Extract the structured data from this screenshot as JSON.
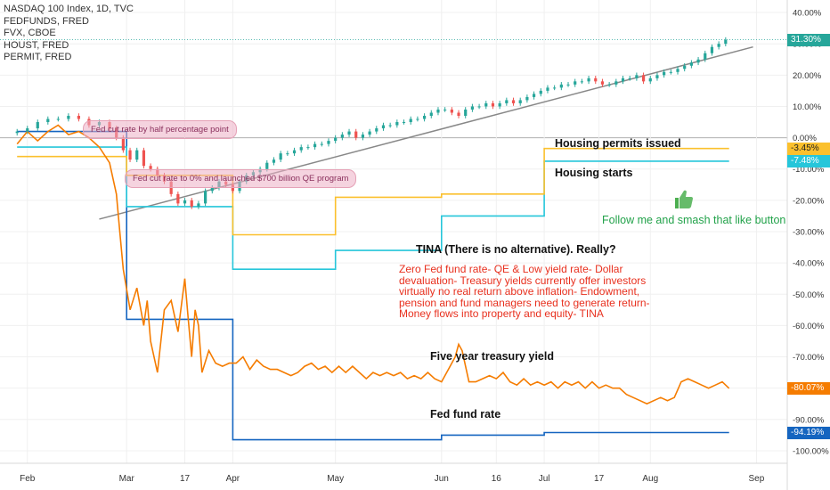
{
  "legend": {
    "main": "NASDAQ 100 Index, 1D, TVC",
    "s1": "FEDFUNDS, FRED",
    "s2": "FVX, CBOE",
    "s3": "HOUST, FRED",
    "s4": "PERMIT, FRED"
  },
  "annotations": {
    "bubble1": "Fed cut rate by half percentage point",
    "bubble2": "Fed cut rate to 0% and launched $700 billion QE program",
    "permits": "Housing permits issued",
    "starts": "Housing starts",
    "like": "Follow me and smash that like button",
    "tina_title": "TINA (There is no alternative). Really?",
    "tina_body": "Zero Fed fund rate-  QE & Low yield rate-  Dollar devaluation-  Treasury yields currently offer investors virtually no real return above inflation- Endowment, pension and fund managers need to generate return-  Money flows into property and equity-  TINA",
    "treasury": "Five year treasury yield",
    "fedfund": "Fed fund rate"
  },
  "labels": {
    "nasdaq": "31.30%",
    "permit": "-3.45%",
    "houst": "-7.48%",
    "fvx": "-80.07%",
    "fedfunds": "-94.19%"
  },
  "colors": {
    "nasdaq_up": "#26a69a",
    "nasdaq_down": "#ef5350",
    "fedfunds": "#1565c0",
    "fvx": "#f57c00",
    "houst": "#26c6da",
    "permit": "#fbc02d",
    "trendline": "#888888"
  },
  "chart_data": {
    "type": "line",
    "yaxis_unit": "%",
    "ylim": [
      -104,
      44
    ],
    "y_ticks": [
      "40.00%",
      "30.00%",
      "20.00%",
      "10.00%",
      "0.00%",
      "-10.00%",
      "-20.00%",
      "-30.00%",
      "-40.00%",
      "-50.00%",
      "-60.00%",
      "-70.00%",
      "-80.00%",
      "-90.00%",
      "-100.00%"
    ],
    "y_tick_values": [
      40,
      30,
      20,
      10,
      0,
      -10,
      -20,
      -30,
      -40,
      -50,
      -60,
      -70,
      -80,
      -90,
      -100
    ],
    "x_ticks": [
      "Feb",
      "Mar",
      "17",
      "Apr",
      "May",
      "Jun",
      "16",
      "Jul",
      "17",
      "Aug",
      "Sep"
    ],
    "x_tick_days": [
      0,
      29,
      46,
      60,
      90,
      121,
      137,
      151,
      167,
      182,
      213
    ],
    "grid": true,
    "series": [
      {
        "key": "fedfunds",
        "name": "FEDFUNDS, FRED",
        "type": "step",
        "points": [
          [
            -3,
            2
          ],
          [
            29,
            2
          ],
          [
            29,
            -58
          ],
          [
            60,
            -58
          ],
          [
            60,
            -96.5
          ],
          [
            121,
            -96.5
          ],
          [
            121,
            -95
          ],
          [
            151,
            -95
          ],
          [
            151,
            -94.19
          ],
          [
            205,
            -94.19
          ]
        ]
      },
      {
        "key": "houst",
        "name": "HOUST, FRED",
        "type": "step",
        "points": [
          [
            -3,
            -3
          ],
          [
            29,
            -3
          ],
          [
            29,
            -22
          ],
          [
            60,
            -22
          ],
          [
            60,
            -42
          ],
          [
            90,
            -42
          ],
          [
            90,
            -36
          ],
          [
            121,
            -36
          ],
          [
            121,
            -25
          ],
          [
            151,
            -25
          ],
          [
            151,
            -7.48
          ],
          [
            205,
            -7.48
          ]
        ]
      },
      {
        "key": "permit",
        "name": "PERMIT, FRED",
        "type": "step",
        "points": [
          [
            -3,
            -6
          ],
          [
            29,
            -6
          ],
          [
            29,
            -12
          ],
          [
            60,
            -12
          ],
          [
            60,
            -31
          ],
          [
            90,
            -31
          ],
          [
            90,
            -19
          ],
          [
            121,
            -19
          ],
          [
            121,
            -18
          ],
          [
            151,
            -18
          ],
          [
            151,
            -3.45
          ],
          [
            205,
            -3.45
          ]
        ]
      },
      {
        "key": "fvx",
        "name": "FVX, CBOE",
        "type": "line",
        "points": [
          [
            -3,
            -2
          ],
          [
            0,
            2
          ],
          [
            3,
            -1
          ],
          [
            6,
            2
          ],
          [
            9,
            4
          ],
          [
            12,
            1
          ],
          [
            15,
            2
          ],
          [
            18,
            0
          ],
          [
            21,
            -3
          ],
          [
            24,
            -8
          ],
          [
            26,
            -18
          ],
          [
            27,
            -30
          ],
          [
            28,
            -42
          ],
          [
            30,
            -55
          ],
          [
            32,
            -48
          ],
          [
            34,
            -60
          ],
          [
            35,
            -52
          ],
          [
            36,
            -65
          ],
          [
            38,
            -75
          ],
          [
            40,
            -55
          ],
          [
            42,
            -52
          ],
          [
            44,
            -62
          ],
          [
            46,
            -45
          ],
          [
            47,
            -58
          ],
          [
            48,
            -70
          ],
          [
            49,
            -55
          ],
          [
            50,
            -60
          ],
          [
            51,
            -75
          ],
          [
            53,
            -68
          ],
          [
            55,
            -72
          ],
          [
            57,
            -73
          ],
          [
            59,
            -72
          ],
          [
            61,
            -72
          ],
          [
            63,
            -70
          ],
          [
            65,
            -74
          ],
          [
            67,
            -71
          ],
          [
            69,
            -73
          ],
          [
            71,
            -74
          ],
          [
            73,
            -74
          ],
          [
            75,
            -75
          ],
          [
            77,
            -76
          ],
          [
            79,
            -75
          ],
          [
            81,
            -73
          ],
          [
            83,
            -72
          ],
          [
            85,
            -74
          ],
          [
            87,
            -73
          ],
          [
            89,
            -75
          ],
          [
            91,
            -73
          ],
          [
            93,
            -75
          ],
          [
            95,
            -73
          ],
          [
            97,
            -75
          ],
          [
            99,
            -77
          ],
          [
            101,
            -75
          ],
          [
            103,
            -76
          ],
          [
            105,
            -75
          ],
          [
            107,
            -76
          ],
          [
            109,
            -75
          ],
          [
            111,
            -77
          ],
          [
            113,
            -76
          ],
          [
            115,
            -77
          ],
          [
            117,
            -75
          ],
          [
            119,
            -77
          ],
          [
            121,
            -78
          ],
          [
            123,
            -74
          ],
          [
            125,
            -70
          ],
          [
            126,
            -66
          ],
          [
            127,
            -68
          ],
          [
            129,
            -78
          ],
          [
            131,
            -78
          ],
          [
            133,
            -77
          ],
          [
            135,
            -76
          ],
          [
            137,
            -77
          ],
          [
            139,
            -75
          ],
          [
            141,
            -78
          ],
          [
            143,
            -79
          ],
          [
            145,
            -77
          ],
          [
            147,
            -79
          ],
          [
            149,
            -78
          ],
          [
            151,
            -79
          ],
          [
            153,
            -78
          ],
          [
            155,
            -80
          ],
          [
            157,
            -78
          ],
          [
            159,
            -79
          ],
          [
            161,
            -78
          ],
          [
            163,
            -80
          ],
          [
            165,
            -78
          ],
          [
            167,
            -80
          ],
          [
            169,
            -79
          ],
          [
            171,
            -80
          ],
          [
            173,
            -80
          ],
          [
            175,
            -82
          ],
          [
            177,
            -83
          ],
          [
            179,
            -84
          ],
          [
            181,
            -85
          ],
          [
            183,
            -84
          ],
          [
            185,
            -83
          ],
          [
            187,
            -84
          ],
          [
            189,
            -83
          ],
          [
            191,
            -78
          ],
          [
            193,
            -77
          ],
          [
            195,
            -78
          ],
          [
            197,
            -79
          ],
          [
            199,
            -80
          ],
          [
            201,
            -79
          ],
          [
            203,
            -78
          ],
          [
            205,
            -80.07
          ]
        ]
      },
      {
        "key": "nasdaq",
        "name": "NASDAQ 100 Index, 1D, TVC",
        "type": "candle",
        "close": [
          [
            -3,
            2
          ],
          [
            0,
            3
          ],
          [
            3,
            5
          ],
          [
            6,
            6
          ],
          [
            9,
            6
          ],
          [
            12,
            7
          ],
          [
            15,
            6
          ],
          [
            18,
            4
          ],
          [
            21,
            5
          ],
          [
            24,
            3
          ],
          [
            26,
            0
          ],
          [
            28,
            -4
          ],
          [
            30,
            -7
          ],
          [
            32,
            -4
          ],
          [
            34,
            -9
          ],
          [
            36,
            -10
          ],
          [
            38,
            -12
          ],
          [
            40,
            -14
          ],
          [
            42,
            -18
          ],
          [
            44,
            -21
          ],
          [
            46,
            -20
          ],
          [
            48,
            -22
          ],
          [
            50,
            -21
          ],
          [
            52,
            -17
          ],
          [
            54,
            -16
          ],
          [
            56,
            -14
          ],
          [
            58,
            -15
          ],
          [
            60,
            -17
          ],
          [
            62,
            -14
          ],
          [
            64,
            -12
          ],
          [
            66,
            -11
          ],
          [
            68,
            -10
          ],
          [
            70,
            -8
          ],
          [
            72,
            -7
          ],
          [
            74,
            -5
          ],
          [
            76,
            -5
          ],
          [
            78,
            -4
          ],
          [
            80,
            -3
          ],
          [
            82,
            -3
          ],
          [
            84,
            -2
          ],
          [
            86,
            -2
          ],
          [
            88,
            -1
          ],
          [
            90,
            0
          ],
          [
            92,
            1
          ],
          [
            94,
            2
          ],
          [
            96,
            0
          ],
          [
            98,
            1
          ],
          [
            100,
            2
          ],
          [
            102,
            3
          ],
          [
            104,
            4
          ],
          [
            106,
            4
          ],
          [
            108,
            5
          ],
          [
            110,
            5
          ],
          [
            112,
            6
          ],
          [
            114,
            6
          ],
          [
            116,
            7
          ],
          [
            118,
            8
          ],
          [
            120,
            9
          ],
          [
            122,
            9
          ],
          [
            124,
            8
          ],
          [
            126,
            7
          ],
          [
            128,
            9
          ],
          [
            130,
            10
          ],
          [
            132,
            10
          ],
          [
            134,
            11
          ],
          [
            136,
            10
          ],
          [
            138,
            11
          ],
          [
            140,
            12
          ],
          [
            142,
            11
          ],
          [
            144,
            12
          ],
          [
            146,
            13
          ],
          [
            148,
            14
          ],
          [
            150,
            15
          ],
          [
            152,
            16
          ],
          [
            154,
            16
          ],
          [
            156,
            17
          ],
          [
            158,
            17
          ],
          [
            160,
            18
          ],
          [
            162,
            18
          ],
          [
            164,
            19
          ],
          [
            166,
            18
          ],
          [
            168,
            17
          ],
          [
            170,
            17
          ],
          [
            172,
            18
          ],
          [
            174,
            19
          ],
          [
            176,
            19
          ],
          [
            178,
            20
          ],
          [
            180,
            18
          ],
          [
            182,
            19
          ],
          [
            184,
            20
          ],
          [
            186,
            21
          ],
          [
            188,
            21
          ],
          [
            190,
            22
          ],
          [
            192,
            23
          ],
          [
            194,
            24
          ],
          [
            196,
            25
          ],
          [
            198,
            27
          ],
          [
            200,
            29
          ],
          [
            202,
            30
          ],
          [
            204,
            31.3
          ]
        ]
      }
    ],
    "trendline": [
      [
        21,
        -26
      ],
      [
        212,
        29
      ]
    ]
  }
}
